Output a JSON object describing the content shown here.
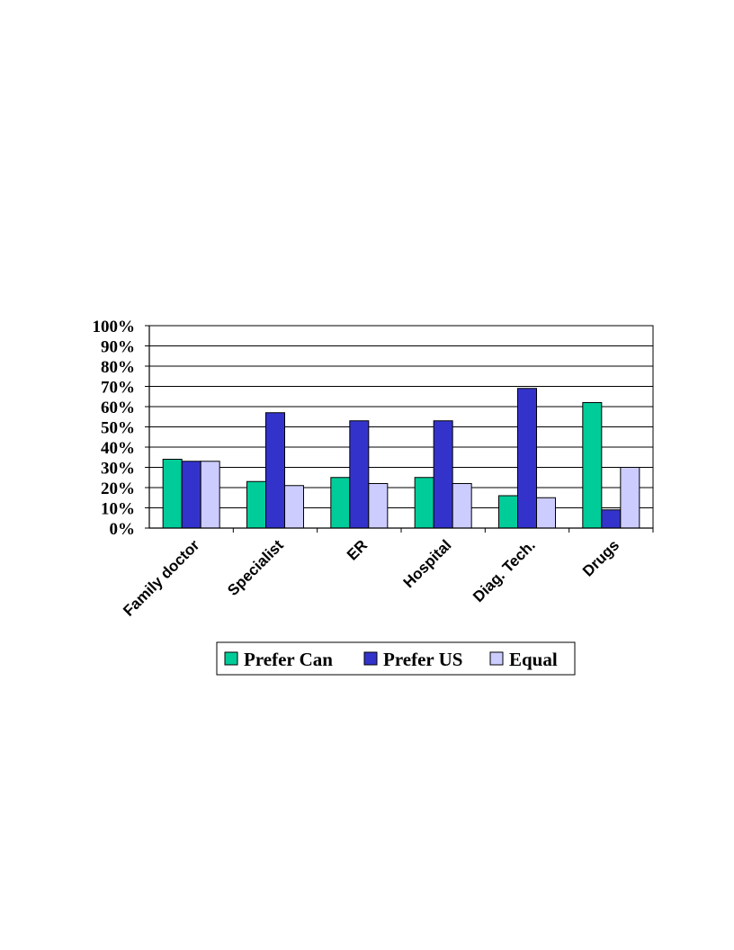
{
  "chart_data": {
    "type": "bar",
    "title": "",
    "xlabel": "",
    "ylabel": "",
    "categories": [
      "Family doctor",
      "Specialist",
      "ER",
      "Hospital",
      "Diag. Tech.",
      "Drugs"
    ],
    "series": [
      {
        "name": "Prefer Can",
        "color": "#00cc99",
        "values": [
          34,
          23,
          25,
          25,
          16,
          62
        ]
      },
      {
        "name": "Prefer US",
        "color": "#3333cc",
        "values": [
          33,
          57,
          53,
          53,
          69,
          9
        ]
      },
      {
        "name": "Equal",
        "color": "#ccccff",
        "values": [
          33,
          21,
          22,
          22,
          15,
          30
        ]
      }
    ],
    "ylim": [
      0,
      100
    ],
    "yticks": [
      "0%",
      "10%",
      "20%",
      "30%",
      "40%",
      "50%",
      "60%",
      "70%",
      "80%",
      "90%",
      "100%"
    ],
    "grid": true,
    "legend_position": "bottom"
  }
}
